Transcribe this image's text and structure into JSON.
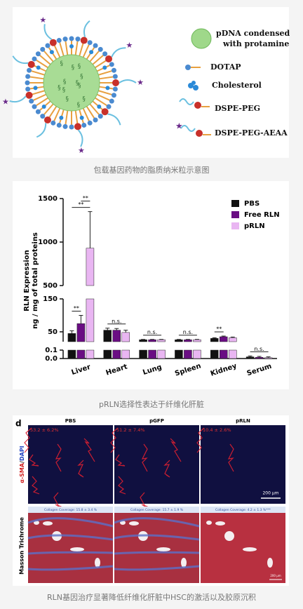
{
  "diagram": {
    "legend": [
      "pDNA condensed",
      "with protamine",
      "DOTAP",
      "Cholesterol",
      "DSPE-PEG",
      "DSPE-PEG-AEAA"
    ],
    "caption": "包载基因药物的脂质纳米粒示意图"
  },
  "chart_data": {
    "type": "bar",
    "y_label": [
      "RLN Expression",
      "ng / mg of total proteins"
    ],
    "categories": [
      "Liver",
      "Heart",
      "Lung",
      "Spleen",
      "Kidney",
      "Serum"
    ],
    "series": [
      {
        "name": "PBS",
        "color": "#111111",
        "values": [
          45,
          55,
          26,
          26,
          30,
          0.02
        ],
        "errors": [
          8,
          6,
          1,
          1,
          2,
          0.01
        ]
      },
      {
        "name": "Free RLN",
        "color": "#6a0d83",
        "values": [
          75,
          55,
          26,
          26,
          35,
          0.015
        ],
        "errors": [
          25,
          5,
          1,
          1,
          2,
          0.01
        ]
      },
      {
        "name": "pRLN",
        "color": "#e9b6f2",
        "values": [
          930,
          48,
          26,
          26,
          32,
          0.01
        ],
        "errors": [
          420,
          7,
          1,
          1,
          2,
          0.01
        ]
      }
    ],
    "ylim_segments": [
      [
        0,
        0.1
      ],
      [
        20,
        150
      ],
      [
        500,
        1500
      ]
    ],
    "yticks": [
      {
        "value": 0,
        "label": "0.0"
      },
      0.1,
      50,
      150,
      500,
      1000,
      1500
    ],
    "legend": "top-right",
    "annotations": [
      {
        "label": "**",
        "category": "Liver",
        "pair": [
          "PBS",
          "pRLN"
        ]
      },
      {
        "label": "**",
        "category": "Liver",
        "pair": [
          "Free RLN",
          "pRLN"
        ]
      },
      {
        "label": "**",
        "category": "Liver",
        "pair": [
          "PBS",
          "Free RLN"
        ]
      },
      {
        "label": "n.s.",
        "category": "Heart",
        "pair": [
          "PBS",
          "pRLN"
        ]
      },
      {
        "label": "n.s.",
        "category": "Lung",
        "pair": [
          "PBS",
          "pRLN"
        ]
      },
      {
        "label": "n.s.",
        "category": "Spleen",
        "pair": [
          "PBS",
          "pRLN"
        ]
      },
      {
        "label": "**",
        "category": "Kidney",
        "pair": [
          "PBS",
          "Free RLN"
        ]
      },
      {
        "label": "n.s.",
        "category": "Serum",
        "pair": [
          "PBS",
          "pRLN"
        ]
      }
    ],
    "caption": "pRLN选择性表达于纤维化肝脏"
  },
  "micrographs": {
    "panel": "d",
    "columns": [
      "PBS",
      "pGFP",
      "pRLN"
    ],
    "row_labels": [
      "α-SMA",
      "/",
      "DAPI",
      "Masson Trichrome"
    ],
    "sma": [
      "53.2 ± 6.2%",
      "51.2 ± 7.4%",
      "10.4 ± 2.6%"
    ],
    "collagen": [
      "Collagen Coverage: 15.8 ± 3.4 %",
      "Collagen Coverage: 15.7 ± 1.9 %",
      "Collagen Coverage: 4.2 ± 1.3 %***"
    ],
    "scale": [
      "200 μm",
      "200 μm"
    ],
    "caption": "RLN基因治疗显著降低纤维化肝脏中HSC的激活以及胶原沉积"
  }
}
